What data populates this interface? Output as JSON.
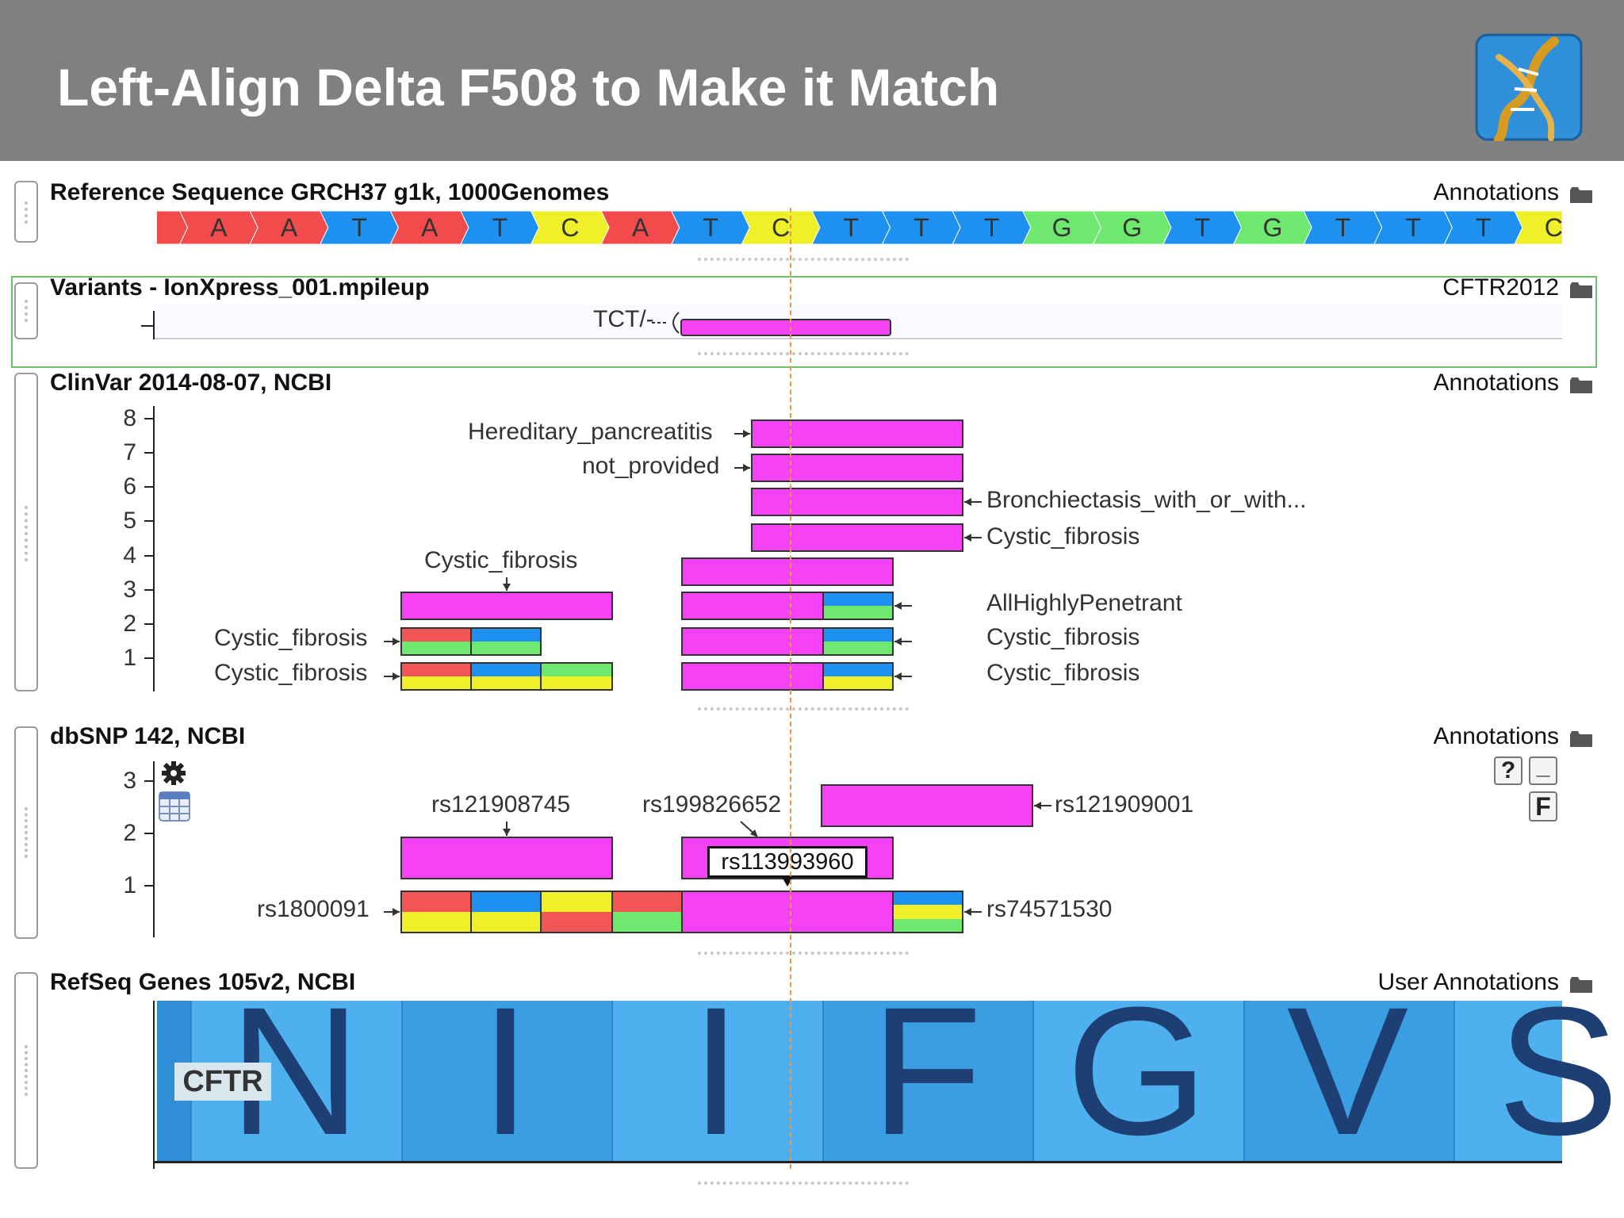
{
  "header": {
    "title": "Left-Align Delta F508 to Make it Match",
    "bg_color": "#808080",
    "logo_icon": "dna-helix-logo-icon"
  },
  "tracks": {
    "reference": {
      "name": "Reference Sequence GRCH37 g1k, 1000Genomes",
      "right_label": "Annotations",
      "bases": [
        "A",
        "A",
        "A",
        "T",
        "A",
        "T",
        "C",
        "A",
        "T",
        "C",
        "T",
        "T",
        "T",
        "G",
        "G",
        "T",
        "G",
        "T",
        "T",
        "T",
        "C"
      ],
      "colors": {
        "A": "#f24b4b",
        "T": "#1e90f0",
        "C": "#f0f02a",
        "G": "#6ee86e"
      }
    },
    "variants": {
      "name": "Variants - IonXpress_001.mpileup",
      "right_label": "CFTR2012",
      "feature_label": "TCT/-",
      "border_color": "#5cb85c"
    },
    "clinvar": {
      "name": "ClinVar 2014-08-07, NCBI",
      "right_label": "Annotations",
      "y_ticks": [
        "8",
        "7",
        "6",
        "5",
        "4",
        "3",
        "2",
        "1"
      ],
      "labels": {
        "hereditary": "Hereditary_pancreatitis",
        "not_provided": "not_provided",
        "bronchiectasis": "Bronchiectasis_with_or_with...",
        "cf_row5": "Cystic_fibrosis",
        "cf_top_left": "Cystic_fibrosis",
        "all_highly": "AllHighlyPenetrant",
        "cf_row2_right": "Cystic_fibrosis",
        "cf_row1_right": "Cystic_fibrosis",
        "cf_row2_left": "Cystic_fibrosis",
        "cf_row1_left": "Cystic_fibrosis"
      }
    },
    "dbsnp": {
      "name": "dbSNP 142, NCBI",
      "right_label": "Annotations",
      "y_ticks": [
        "3",
        "2",
        "1"
      ],
      "labels": {
        "rs121908745": "rs121908745",
        "rs199826652": "rs199826652",
        "rs121909001": "rs121909001",
        "rs1800091": "rs1800091",
        "rs74571530": "rs74571530"
      },
      "tooltip": "rs113993960",
      "help_button": "?",
      "minimize_button": "_",
      "filter_button": "F"
    },
    "refseq": {
      "name": "RefSeq Genes 105v2, NCBI",
      "right_label": "User Annotations",
      "gene_label": "CFTR",
      "amino_acids": [
        "N",
        "I",
        "I",
        "F",
        "G",
        "V",
        "S"
      ]
    }
  }
}
